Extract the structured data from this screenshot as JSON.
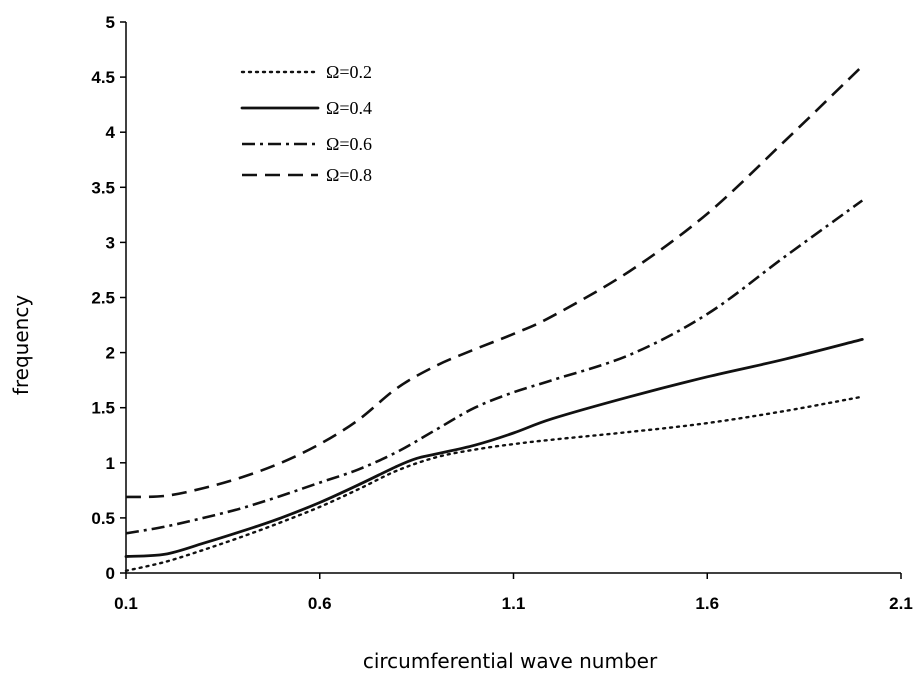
{
  "chart_data": {
    "type": "line",
    "title": "",
    "xlabel": "circumferential wave number",
    "ylabel": "frequency",
    "xlim": [
      0.1,
      2.1
    ],
    "ylim": [
      0,
      5
    ],
    "xticks": [
      "0.1",
      "0.6",
      "1.1",
      "1.6",
      "2.1"
    ],
    "yticks": [
      "0",
      "0.5",
      "1",
      "1.5",
      "2",
      "2.5",
      "3",
      "3.5",
      "4",
      "4.5",
      "5"
    ],
    "grid": false,
    "legend_position": "top-left",
    "series": [
      {
        "name": "Ω=0.2",
        "style": "dotted",
        "x": [
          0.1,
          0.2,
          0.3,
          0.4,
          0.5,
          0.6,
          0.7,
          0.8,
          0.9,
          1.0,
          1.1,
          1.2,
          1.4,
          1.6,
          1.8,
          2.0
        ],
        "y": [
          0.02,
          0.1,
          0.21,
          0.33,
          0.46,
          0.6,
          0.76,
          0.93,
          1.05,
          1.12,
          1.17,
          1.21,
          1.28,
          1.36,
          1.47,
          1.6
        ]
      },
      {
        "name": "Ω=0.4",
        "style": "solid",
        "x": [
          0.1,
          0.2,
          0.3,
          0.4,
          0.5,
          0.6,
          0.7,
          0.8,
          0.85,
          0.9,
          1.0,
          1.1,
          1.2,
          1.4,
          1.6,
          1.8,
          2.0
        ],
        "y": [
          0.15,
          0.17,
          0.27,
          0.38,
          0.5,
          0.64,
          0.8,
          0.97,
          1.04,
          1.08,
          1.16,
          1.27,
          1.4,
          1.6,
          1.78,
          1.94,
          2.12
        ]
      },
      {
        "name": "Ω=0.6",
        "style": "dashdot",
        "x": [
          0.1,
          0.2,
          0.3,
          0.4,
          0.5,
          0.6,
          0.7,
          0.8,
          0.9,
          1.0,
          1.1,
          1.2,
          1.4,
          1.6,
          1.8,
          2.0
        ],
        "y": [
          0.36,
          0.42,
          0.5,
          0.59,
          0.7,
          0.82,
          0.94,
          1.1,
          1.3,
          1.5,
          1.64,
          1.75,
          1.98,
          2.35,
          2.87,
          3.38
        ]
      },
      {
        "name": "Ω=0.8",
        "style": "dashed",
        "x": [
          0.1,
          0.2,
          0.3,
          0.4,
          0.5,
          0.6,
          0.7,
          0.8,
          0.9,
          1.0,
          1.1,
          1.2,
          1.4,
          1.6,
          1.8,
          2.0
        ],
        "y": [
          0.69,
          0.7,
          0.77,
          0.87,
          1.0,
          1.17,
          1.39,
          1.68,
          1.88,
          2.03,
          2.17,
          2.33,
          2.74,
          3.26,
          3.92,
          4.6
        ]
      }
    ]
  }
}
